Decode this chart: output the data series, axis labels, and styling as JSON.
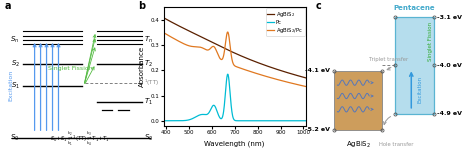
{
  "panel_a": {
    "title": "a",
    "exc_color": "#5599ee",
    "sf_color": "#55bb44",
    "label_color_exc": "#4488ee",
    "eq_text": "S_0+S_1 k2/k1 1(TT) k3/k4 T1+T1"
  },
  "panel_b": {
    "title": "b",
    "line_colors": [
      "#5a2000",
      "#00bcd4",
      "#e07820"
    ],
    "legend_labels": [
      "AgBiS$_2$",
      "Pc",
      "AgBiS$_2$/Pc"
    ],
    "xlabel": "Wavelength (nm)",
    "ylabel": "Absorbance",
    "xlim": [
      390,
      1010
    ],
    "ylim": [
      -0.02,
      0.45
    ],
    "yticks": [
      0.0,
      0.1,
      0.2,
      0.3,
      0.4
    ],
    "xticks": [
      400,
      500,
      600,
      700,
      800,
      900,
      1000
    ]
  },
  "panel_c": {
    "title": "c",
    "agbis2_color": "#c8924a",
    "pentacene_color": "#a8d8ea",
    "pentacene_border": "#44aacc",
    "wave_color": "#5577bb",
    "exc_color": "#3399dd",
    "sf_color": "#33aa33",
    "transfer_color": "#999999",
    "agbis2_label": "AgBiS$_2$",
    "pentacene_label": "Pentacene",
    "levels_right": [
      "-3.1 eV",
      "-4.0 eV",
      "-4.9 eV"
    ],
    "levels_left": [
      "-4.1 eV",
      "-5.2 eV"
    ]
  }
}
